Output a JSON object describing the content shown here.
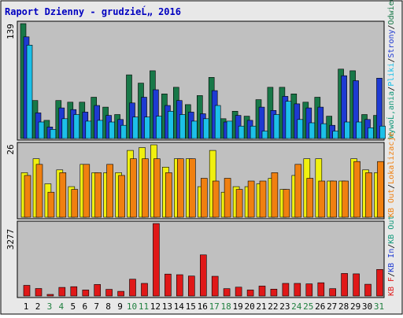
{
  "header": {
    "title": "Raport Dzienny -  grudzieĹ„ 2016"
  },
  "colors": {
    "page_bg": "#ffffff",
    "frame_bg": "#e8e8e8",
    "plot_bg": "#c0c0c0",
    "title": "#0000c0",
    "grid_label": "#000000",
    "weekend_label": "#208040",
    "visits": "#187848",
    "pages": "#1e3ad2",
    "files": "#1cc0e8",
    "hits": "#10987a",
    "sites": "#f0f010",
    "kb_out": "#f08010",
    "kb_f": "#e01818"
  },
  "chart_data": [
    {
      "type": "bar",
      "panel": "top",
      "ymax_label": "139",
      "x": [
        "1",
        "2",
        "3",
        "4",
        "5",
        "6",
        "7",
        "8",
        "9",
        "10",
        "11",
        "12",
        "13",
        "14",
        "15",
        "16",
        "17",
        "18",
        "19",
        "20",
        "21",
        "22",
        "23",
        "24",
        "25",
        "26",
        "27",
        "28",
        "29",
        "30",
        "31"
      ],
      "weekend_days": [
        "3",
        "4",
        "10",
        "11",
        "17",
        "18",
        "24",
        "25",
        "31"
      ],
      "ylim": [
        0,
        139
      ],
      "series": [
        {
          "name": "Wizyty",
          "color": "#187848",
          "values": [
            139,
            46,
            22,
            46,
            44,
            44,
            50,
            38,
            29,
            77,
            67,
            82,
            54,
            62,
            41,
            52,
            74,
            24,
            33,
            27,
            47,
            62,
            62,
            54,
            44,
            50,
            27,
            84,
            82,
            29,
            28
          ]
        },
        {
          "name": "Strony",
          "color": "#1e3ad2",
          "values": [
            123,
            31,
            14,
            37,
            35,
            32,
            40,
            28,
            23,
            43,
            50,
            59,
            40,
            46,
            32,
            30,
            58,
            20,
            28,
            22,
            38,
            34,
            51,
            42,
            37,
            38,
            16,
            76,
            70,
            23,
            73
          ]
        },
        {
          "name": "Pliki",
          "color": "#1cc0e8",
          "values": [
            113,
            20,
            11,
            24,
            29,
            21,
            22,
            20,
            16,
            26,
            26,
            27,
            33,
            29,
            21,
            24,
            40,
            21,
            15,
            15,
            9,
            29,
            45,
            23,
            19,
            18,
            9,
            20,
            20,
            13,
            15
          ]
        }
      ],
      "legend": [
        "Odwiedziny",
        "Strony",
        "Pliki",
        "WywoĹ‚ania"
      ]
    },
    {
      "type": "bar",
      "panel": "middle",
      "ymax_label": "26",
      "x": [
        "1",
        "2",
        "3",
        "4",
        "5",
        "6",
        "7",
        "8",
        "9",
        "10",
        "11",
        "12",
        "13",
        "14",
        "15",
        "16",
        "17",
        "18",
        "19",
        "20",
        "21",
        "22",
        "23",
        "24",
        "25",
        "26",
        "27",
        "28",
        "29",
        "30",
        "31"
      ],
      "ylim": [
        0,
        26
      ],
      "series": [
        {
          "name": "Lokalizacje",
          "color": "#f0f010",
          "values": [
            16,
            21,
            12,
            17,
            11,
            19,
            16,
            16,
            16,
            24,
            25,
            26,
            18,
            21,
            21,
            11,
            24,
            9,
            11,
            11,
            12,
            14,
            10,
            15,
            21,
            21,
            13,
            13,
            21,
            17,
            16
          ]
        },
        {
          "name": "KB Out",
          "color": "#f08010",
          "values": [
            15,
            19,
            9,
            16,
            10,
            19,
            16,
            19,
            15,
            21,
            21,
            21,
            16,
            21,
            21,
            14,
            13,
            14,
            10,
            13,
            13,
            16,
            10,
            19,
            14,
            13,
            13,
            13,
            20,
            16,
            20
          ]
        }
      ],
      "legend": [
        "Lokalizacje",
        "KB Out"
      ]
    },
    {
      "type": "bar",
      "panel": "bottom",
      "ymax_label": "3277",
      "x": [
        "1",
        "2",
        "3",
        "4",
        "5",
        "6",
        "7",
        "8",
        "9",
        "10",
        "11",
        "12",
        "13",
        "14",
        "15",
        "16",
        "17",
        "18",
        "19",
        "20",
        "21",
        "22",
        "23",
        "24",
        "25",
        "26",
        "27",
        "28",
        "29",
        "30",
        "31"
      ],
      "ylim": [
        0,
        3277
      ],
      "series": [
        {
          "name": "KB F",
          "color": "#e01818",
          "values": [
            480,
            340,
            70,
            390,
            420,
            270,
            520,
            300,
            210,
            760,
            570,
            3277,
            990,
            960,
            900,
            1860,
            890,
            330,
            400,
            270,
            450,
            310,
            570,
            570,
            550,
            600,
            330,
            1020,
            1000,
            530,
            1200
          ]
        }
      ],
      "legend": [
        "KB In",
        "KB Out",
        "KB F"
      ]
    }
  ],
  "right_legend": [
    {
      "text": "WywoĹ‚ania",
      "color": "#10987a"
    },
    {
      "text": "/",
      "color": "#000000"
    },
    {
      "text": "Pliki",
      "color": "#1cc0e8"
    },
    {
      "text": "/",
      "color": "#000000"
    },
    {
      "text": "Strony",
      "color": "#1e3ad2"
    },
    {
      "text": "/",
      "color": "#000000"
    },
    {
      "text": "Odwiedziny",
      "color": "#187848"
    }
  ],
  "right_legend_mid": [
    {
      "text": "KB Out",
      "color": "#f08010"
    },
    {
      "text": "/",
      "color": "#000000"
    },
    {
      "text": "Lokalizacje",
      "color": "#f08010"
    }
  ],
  "right_legend_bot": [
    {
      "text": "KB F",
      "color": "#e01818"
    },
    {
      "text": "/",
      "color": "#000000"
    },
    {
      "text": "KB In",
      "color": "#1e3ad2"
    },
    {
      "text": "/",
      "color": "#000000"
    },
    {
      "text": "KB Out",
      "color": "#10987a"
    }
  ]
}
